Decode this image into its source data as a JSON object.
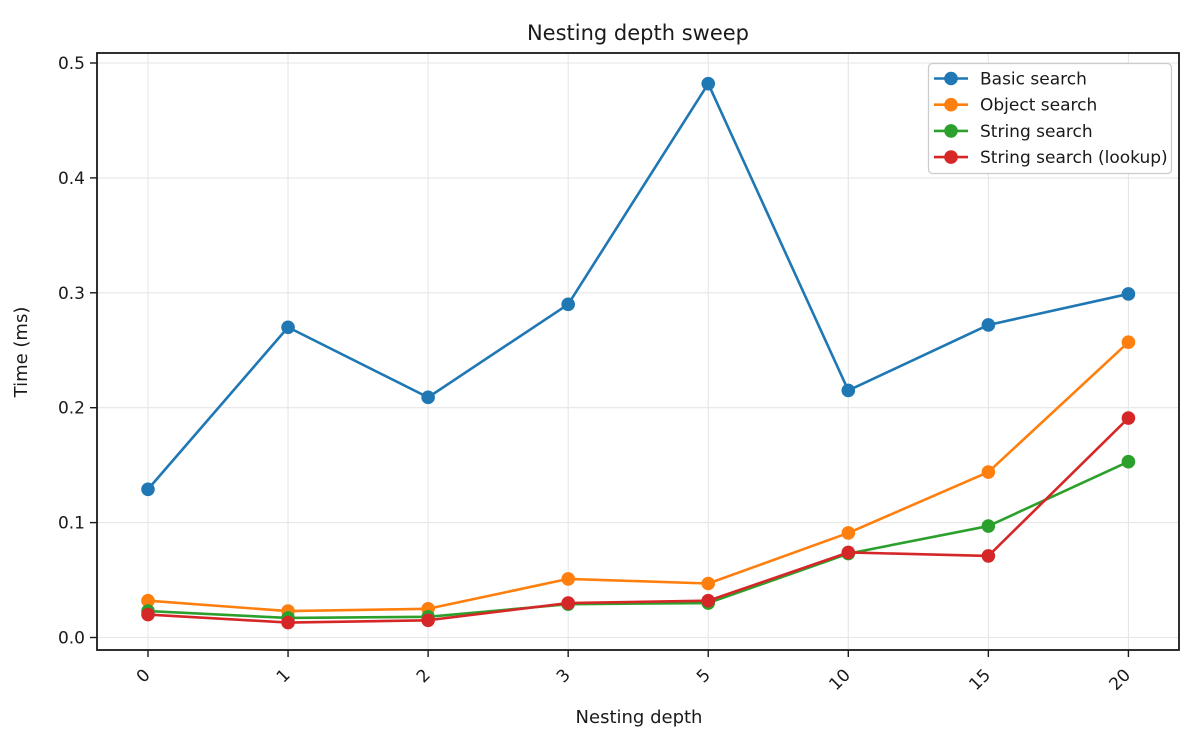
{
  "figure": {
    "title": "Nesting depth sweep",
    "xlabel": "Nesting depth",
    "ylabel": "Time (ms)"
  },
  "chart_data": {
    "type": "line",
    "title": "Nesting depth sweep",
    "xlabel": "Nesting depth",
    "ylabel": "Time (ms)",
    "x_axis_note": "categorical spacing - ticks evenly spaced despite numeric gaps",
    "categories": [
      "0",
      "1",
      "2",
      "3",
      "5",
      "10",
      "15",
      "20"
    ],
    "x_values": [
      0,
      1,
      2,
      3,
      5,
      10,
      15,
      20
    ],
    "series": [
      {
        "name": "Basic search",
        "color": "#1f77b4",
        "marker": "circle",
        "values": [
          0.129,
          0.27,
          0.209,
          0.29,
          0.482,
          0.215,
          0.272,
          0.299
        ]
      },
      {
        "name": "Object search",
        "color": "#ff7f0e",
        "marker": "circle",
        "values": [
          0.032,
          0.023,
          0.025,
          0.051,
          0.047,
          0.091,
          0.144,
          0.257
        ]
      },
      {
        "name": "String search",
        "color": "#2ca02c",
        "marker": "circle",
        "values": [
          0.023,
          0.017,
          0.018,
          0.029,
          0.03,
          0.073,
          0.097,
          0.153
        ]
      },
      {
        "name": "String search (lookup)",
        "color": "#d62728",
        "marker": "circle",
        "values": [
          0.02,
          0.013,
          0.015,
          0.03,
          0.032,
          0.074,
          0.071,
          0.191
        ]
      }
    ],
    "yticks": [
      0.0,
      0.1,
      0.2,
      0.3,
      0.4,
      0.5
    ],
    "ytick_labels": [
      "0.0",
      "0.1",
      "0.2",
      "0.3",
      "0.4",
      "0.5"
    ],
    "ylim": [
      -0.011,
      0.508
    ],
    "grid": true,
    "legend": {
      "position": "upper right",
      "entries": [
        "Basic search",
        "Object search",
        "String search",
        "String search (lookup)"
      ]
    }
  },
  "colors": {
    "background": "#ffffff",
    "grid": "#e6e6e6",
    "spine": "#1a1a1a",
    "text": "#1a1a1a",
    "legend_border": "#cccccc",
    "legend_background": "#ffffff"
  }
}
